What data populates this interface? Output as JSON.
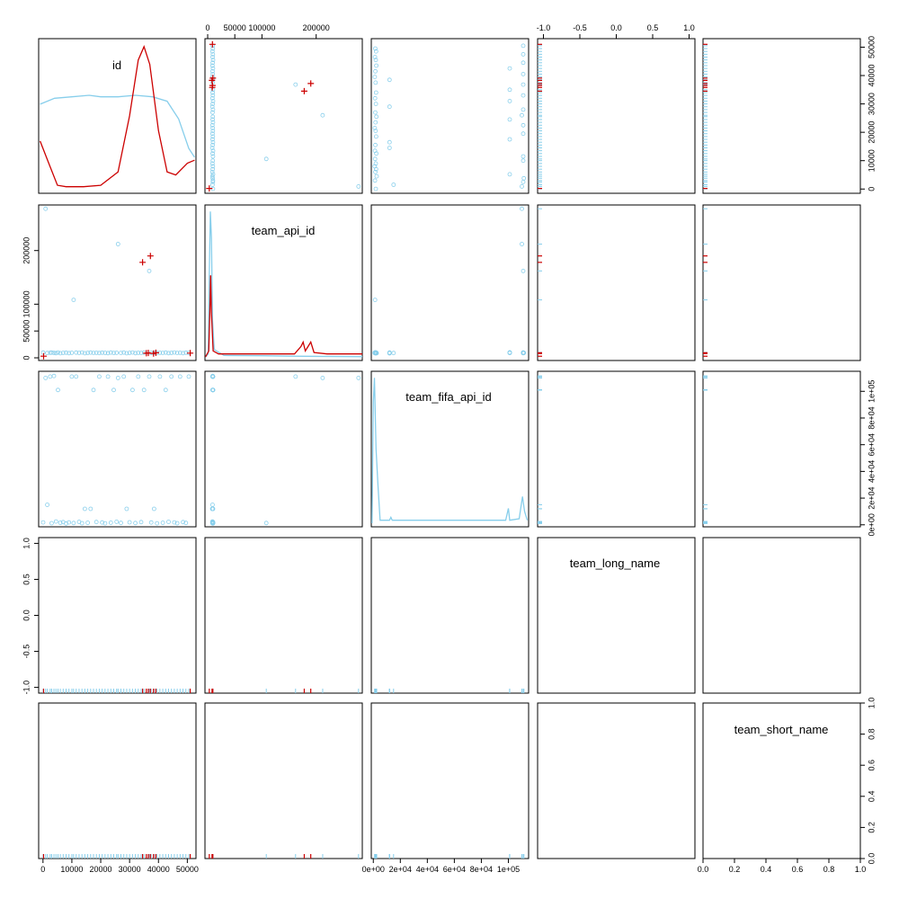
{
  "chart_data": {
    "type": "scatter",
    "kind": "scatterplot-matrix",
    "variables": [
      "id",
      "team_api_id",
      "team_fifa_api_id",
      "team_long_name",
      "team_short_name"
    ],
    "colors": {
      "main": "#87ceeb",
      "highlight": "#cc0000"
    },
    "axes": {
      "id": {
        "ticks": [
          "0",
          "10000",
          "20000",
          "30000",
          "40000",
          "50000"
        ],
        "range": [
          -1500,
          53000
        ]
      },
      "team_api_id": {
        "ticks": [
          "0",
          "50000",
          "100000",
          "200000"
        ],
        "range": [
          -5000,
          285000
        ]
      },
      "team_fifa_api_id": {
        "ticks": [
          "0e+00",
          "2e+04",
          "4e+04",
          "6e+04",
          "8e+04",
          "1e+05"
        ],
        "range": [
          -1500,
          115000
        ]
      },
      "team_long_name": {
        "ticks": [
          "-1.0",
          "-0.5",
          "0.0",
          "0.5",
          "1.0"
        ],
        "range": [
          -1.08,
          1.08
        ]
      },
      "team_short_name": {
        "ticks": [
          "0.0",
          "0.2",
          "0.4",
          "0.6",
          "0.8",
          "1.0"
        ],
        "range": [
          0,
          1
        ]
      }
    },
    "panel_ranges": {
      "team_long_name": [
        -1.08,
        1.08
      ],
      "team_short_name": [
        0,
        1
      ]
    },
    "points_main": [
      {
        "id": 50,
        "team_api_id": 9800,
        "team_fifa_api_id": 1800
      },
      {
        "id": 900,
        "team_api_id": 278000,
        "team_fifa_api_id": 110000
      },
      {
        "id": 1500,
        "team_api_id": 8900,
        "team_fifa_api_id": 15000
      },
      {
        "id": 2500,
        "team_api_id": 9500,
        "team_fifa_api_id": 111000
      },
      {
        "id": 3000,
        "team_api_id": 9700,
        "team_fifa_api_id": 1200
      },
      {
        "id": 3800,
        "team_api_id": 9300,
        "team_fifa_api_id": 111500
      },
      {
        "id": 4500,
        "team_api_id": 8800,
        "team_fifa_api_id": 2500
      },
      {
        "id": 5200,
        "team_api_id": 9900,
        "team_fifa_api_id": 101000
      },
      {
        "id": 6000,
        "team_api_id": 8600,
        "team_fifa_api_id": 1500
      },
      {
        "id": 7000,
        "team_api_id": 9200,
        "team_fifa_api_id": 2000
      },
      {
        "id": 8000,
        "team_api_id": 9600,
        "team_fifa_api_id": 1000
      },
      {
        "id": 9000,
        "team_api_id": 8700,
        "team_fifa_api_id": 1800
      },
      {
        "id": 10000,
        "team_api_id": 9400,
        "team_fifa_api_id": 111000
      },
      {
        "id": 10600,
        "team_api_id": 108000,
        "team_fifa_api_id": 1300
      },
      {
        "id": 11500,
        "team_api_id": 9800,
        "team_fifa_api_id": 111000
      },
      {
        "id": 12500,
        "team_api_id": 9100,
        "team_fifa_api_id": 2200
      },
      {
        "id": 13500,
        "team_api_id": 9900,
        "team_fifa_api_id": 1200
      },
      {
        "id": 14500,
        "team_api_id": 8500,
        "team_fifa_api_id": 12000
      },
      {
        "id": 15500,
        "team_api_id": 9300,
        "team_fifa_api_id": 1500
      },
      {
        "id": 16500,
        "team_api_id": 9700,
        "team_fifa_api_id": 12000
      },
      {
        "id": 17500,
        "team_api_id": 9000,
        "team_fifa_api_id": 101000
      },
      {
        "id": 18500,
        "team_api_id": 9500,
        "team_fifa_api_id": 2100
      },
      {
        "id": 19500,
        "team_api_id": 8900,
        "team_fifa_api_id": 111000
      },
      {
        "id": 20500,
        "team_api_id": 9600,
        "team_fifa_api_id": 1700
      },
      {
        "id": 21500,
        "team_api_id": 9200,
        "team_fifa_api_id": 1100
      },
      {
        "id": 22500,
        "team_api_id": 8800,
        "team_fifa_api_id": 111000
      },
      {
        "id": 23500,
        "team_api_id": 9800,
        "team_fifa_api_id": 1600
      },
      {
        "id": 24500,
        "team_api_id": 9100,
        "team_fifa_api_id": 101000
      },
      {
        "id": 25500,
        "team_api_id": 9400,
        "team_fifa_api_id": 2300
      },
      {
        "id": 26000,
        "team_api_id": 212000,
        "team_fifa_api_id": 110000
      },
      {
        "id": 27000,
        "team_api_id": 9000,
        "team_fifa_api_id": 1400
      },
      {
        "id": 28000,
        "team_api_id": 9700,
        "team_fifa_api_id": 111000
      },
      {
        "id": 29000,
        "team_api_id": 8600,
        "team_fifa_api_id": 12000
      },
      {
        "id": 30000,
        "team_api_id": 9300,
        "team_fifa_api_id": 1900
      },
      {
        "id": 31000,
        "team_api_id": 9900,
        "team_fifa_api_id": 101000
      },
      {
        "id": 32000,
        "team_api_id": 8700,
        "team_fifa_api_id": 1300
      },
      {
        "id": 33000,
        "team_api_id": 9500,
        "team_fifa_api_id": 111000
      },
      {
        "id": 34000,
        "team_api_id": 9100,
        "team_fifa_api_id": 2000
      },
      {
        "id": 35000,
        "team_api_id": 9800,
        "team_fifa_api_id": 101000
      },
      {
        "id": 36800,
        "team_api_id": 162000,
        "team_fifa_api_id": 111000
      },
      {
        "id": 37500,
        "team_api_id": 9200,
        "team_fifa_api_id": 1700
      },
      {
        "id": 38500,
        "team_api_id": 9600,
        "team_fifa_api_id": 12000
      },
      {
        "id": 39500,
        "team_api_id": 8900,
        "team_fifa_api_id": 1100
      },
      {
        "id": 40500,
        "team_api_id": 9400,
        "team_fifa_api_id": 111000
      },
      {
        "id": 41500,
        "team_api_id": 9000,
        "team_fifa_api_id": 1500
      },
      {
        "id": 42500,
        "team_api_id": 9700,
        "team_fifa_api_id": 101000
      },
      {
        "id": 43500,
        "team_api_id": 8800,
        "team_fifa_api_id": 2200
      },
      {
        "id": 44500,
        "team_api_id": 9300,
        "team_fifa_api_id": 111000
      },
      {
        "id": 45500,
        "team_api_id": 9900,
        "team_fifa_api_id": 1800
      },
      {
        "id": 46500,
        "team_api_id": 9100,
        "team_fifa_api_id": 1200
      },
      {
        "id": 47500,
        "team_api_id": 9500,
        "team_fifa_api_id": 111000
      },
      {
        "id": 48500,
        "team_api_id": 8700,
        "team_fifa_api_id": 2000
      },
      {
        "id": 49500,
        "team_api_id": 9600,
        "team_fifa_api_id": 1400
      },
      {
        "id": 50500,
        "team_api_id": 9200,
        "team_fifa_api_id": 111000
      }
    ],
    "points_highlight": [
      {
        "id": 200,
        "team_api_id": 3000,
        "team_fifa_api_id": 200
      },
      {
        "id": 34500,
        "team_api_id": 178000,
        "team_fifa_api_id": 400
      },
      {
        "id": 35800,
        "team_api_id": 8500,
        "team_fifa_api_id": 300
      },
      {
        "id": 36500,
        "team_api_id": 9000,
        "team_fifa_api_id": 500
      },
      {
        "id": 37200,
        "team_api_id": 190000,
        "team_fifa_api_id": 250
      },
      {
        "id": 38300,
        "team_api_id": 8000,
        "team_fifa_api_id": 350
      },
      {
        "id": 39100,
        "team_api_id": 9500,
        "team_fifa_api_id": 450
      },
      {
        "id": 51000,
        "team_api_id": 8800,
        "team_fifa_api_id": 300
      }
    ],
    "density_main": {
      "id": [
        [
          -1000,
          0.58
        ],
        [
          4000,
          0.62
        ],
        [
          10000,
          0.63
        ],
        [
          16000,
          0.64
        ],
        [
          20000,
          0.63
        ],
        [
          26000,
          0.63
        ],
        [
          32000,
          0.64
        ],
        [
          38000,
          0.63
        ],
        [
          43000,
          0.6
        ],
        [
          47000,
          0.48
        ],
        [
          50500,
          0.28
        ],
        [
          52500,
          0.22
        ]
      ],
      "team_api_id": [
        [
          -4000,
          0.0
        ],
        [
          1000,
          0.02
        ],
        [
          3000,
          0.55
        ],
        [
          5000,
          0.98
        ],
        [
          7000,
          0.8
        ],
        [
          9000,
          0.25
        ],
        [
          12000,
          0.05
        ],
        [
          30000,
          0.01
        ],
        [
          100000,
          0.008
        ],
        [
          150000,
          0.005
        ],
        [
          285000,
          0.002
        ]
      ],
      "team_fifa_api_id": [
        [
          -1000,
          0.0
        ],
        [
          0,
          0.82
        ],
        [
          800,
          0.98
        ],
        [
          2000,
          0.5
        ],
        [
          3500,
          0.25
        ],
        [
          5000,
          0.02
        ],
        [
          12000,
          0.02
        ],
        [
          13000,
          0.04
        ],
        [
          14000,
          0.02
        ],
        [
          40000,
          0.02
        ],
        [
          98000,
          0.02
        ],
        [
          100000,
          0.1
        ],
        [
          101000,
          0.02
        ],
        [
          108000,
          0.03
        ],
        [
          110500,
          0.18
        ],
        [
          112000,
          0.08
        ],
        [
          114000,
          0.02
        ]
      ]
    },
    "density_highlight": {
      "id": [
        [
          -1000,
          0.33
        ],
        [
          2000,
          0.18
        ],
        [
          5000,
          0.03
        ],
        [
          8000,
          0.02
        ],
        [
          14000,
          0.02
        ],
        [
          20000,
          0.03
        ],
        [
          26000,
          0.12
        ],
        [
          30000,
          0.5
        ],
        [
          33000,
          0.88
        ],
        [
          35000,
          0.97
        ],
        [
          37000,
          0.85
        ],
        [
          40000,
          0.4
        ],
        [
          43000,
          0.12
        ],
        [
          46000,
          0.1
        ],
        [
          50000,
          0.18
        ],
        [
          52500,
          0.2
        ]
      ],
      "team_api_id": [
        [
          -4000,
          0.0
        ],
        [
          2000,
          0.04
        ],
        [
          4000,
          0.3
        ],
        [
          5500,
          0.55
        ],
        [
          7000,
          0.3
        ],
        [
          10000,
          0.04
        ],
        [
          20000,
          0.02
        ],
        [
          80000,
          0.02
        ],
        [
          160000,
          0.02
        ],
        [
          172000,
          0.07
        ],
        [
          176000,
          0.1
        ],
        [
          180000,
          0.04
        ],
        [
          185000,
          0.07
        ],
        [
          190000,
          0.1
        ],
        [
          196000,
          0.03
        ],
        [
          220000,
          0.02
        ],
        [
          285000,
          0.02
        ]
      ]
    }
  }
}
